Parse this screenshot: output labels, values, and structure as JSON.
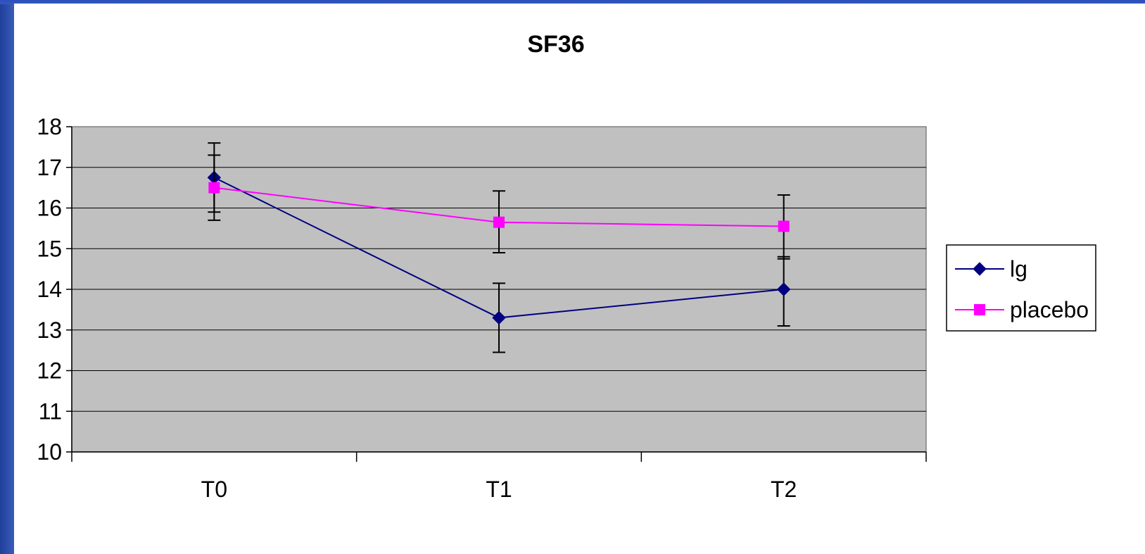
{
  "chart_data": {
    "type": "line",
    "title": "SF36",
    "xlabel": "",
    "ylabel": "",
    "categories": [
      "T0",
      "T1",
      "T2"
    ],
    "ylim": [
      10,
      18
    ],
    "yticks": [
      "10",
      "11",
      "12",
      "13",
      "14",
      "15",
      "16",
      "17",
      "18"
    ],
    "grid": true,
    "legend_position": "right",
    "series": [
      {
        "name": "lg",
        "values": [
          16.75,
          13.3,
          14.0
        ],
        "error_low": [
          15.9,
          12.45,
          13.1
        ],
        "error_high": [
          17.6,
          14.15,
          14.8
        ],
        "color": "#000080",
        "marker": "diamond"
      },
      {
        "name": "placebo",
        "values": [
          16.5,
          15.65,
          15.55
        ],
        "error_low": [
          15.7,
          14.9,
          14.75
        ],
        "error_high": [
          17.3,
          16.42,
          16.32
        ],
        "color": "#ff00ff",
        "marker": "square"
      }
    ],
    "plot_background": "#c0c0c0"
  }
}
